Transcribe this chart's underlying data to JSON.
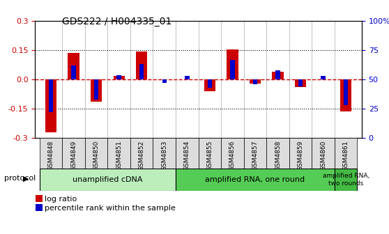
{
  "title": "GDS222 / H004335_01",
  "samples": [
    "GSM4848",
    "GSM4849",
    "GSM4850",
    "GSM4851",
    "GSM4852",
    "GSM4853",
    "GSM4854",
    "GSM4855",
    "GSM4856",
    "GSM4857",
    "GSM4858",
    "GSM4859",
    "GSM4860",
    "GSM4861"
  ],
  "log_ratio": [
    -0.27,
    0.135,
    -0.115,
    0.02,
    0.143,
    0.0,
    0.0,
    -0.06,
    0.153,
    -0.02,
    0.04,
    -0.04,
    0.0,
    -0.165
  ],
  "percentile": [
    22,
    62,
    33,
    54,
    63,
    47,
    53,
    43,
    67,
    46,
    58,
    44,
    53,
    28
  ],
  "ylim": [
    -0.3,
    0.3
  ],
  "right_ylim": [
    0,
    100
  ],
  "yticks_left": [
    -0.3,
    -0.15,
    0.0,
    0.15,
    0.3
  ],
  "yticks_right": [
    0,
    25,
    50,
    75,
    100
  ],
  "hlines": [
    0.15,
    -0.15
  ],
  "red_bar_width": 0.5,
  "blue_bar_width": 0.2,
  "log_color": "#cc0000",
  "pct_color": "#0000cc",
  "zero_line_color": "#cc0000",
  "protocol_groups": [
    {
      "label": "unamplified cDNA",
      "start": 0,
      "end": 5,
      "color": "#bbeebb"
    },
    {
      "label": "amplified RNA, one round",
      "start": 6,
      "end": 12,
      "color": "#55cc55"
    },
    {
      "label": "amplified RNA,\ntwo rounds",
      "start": 13,
      "end": 13,
      "color": "#44bb44"
    }
  ],
  "legend_items": [
    {
      "label": "log ratio",
      "color": "#cc0000"
    },
    {
      "label": "percentile rank within the sample",
      "color": "#0000cc"
    }
  ],
  "protocol_label": "protocol",
  "background_color": "#ffffff",
  "plot_bg": "#ffffff",
  "tick_cell_color": "#dddddd"
}
